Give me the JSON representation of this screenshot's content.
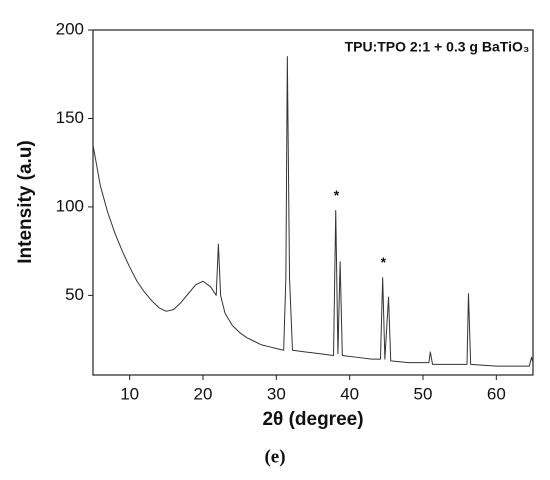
{
  "chart_data": {
    "type": "line",
    "x_label": "2θ (degree)",
    "y_label": "Intensity (a.u)",
    "caption": "(e)",
    "color": "#333333",
    "xlim": [
      5,
      65
    ],
    "ylim": [
      5,
      200
    ],
    "xticks": [
      10,
      20,
      30,
      40,
      50,
      60
    ],
    "yticks": [
      50,
      100,
      150,
      200
    ],
    "x": [
      5,
      6,
      7,
      8,
      9,
      10,
      11,
      12,
      13,
      14,
      15,
      16,
      17,
      18,
      19,
      20,
      21,
      21.8,
      22.1,
      22.4,
      23,
      24,
      25,
      26,
      27,
      28,
      29,
      30,
      31,
      31.3,
      31.5,
      31.8,
      32.2,
      34,
      36,
      37.8,
      38.1,
      38.4,
      38.7,
      39,
      41,
      43,
      44.2,
      44.5,
      44.8,
      45.3,
      45.6,
      48,
      50.8,
      51,
      51.3,
      54,
      56,
      56.2,
      56.5,
      60,
      64.5,
      64.8,
      65
    ],
    "values": [
      135,
      112,
      97,
      85,
      75,
      66,
      58,
      52,
      47,
      43,
      41,
      42,
      46,
      51,
      56,
      58,
      55,
      50,
      79,
      50,
      40,
      33,
      29,
      26,
      24,
      22,
      21,
      20,
      19,
      60,
      185,
      60,
      19,
      18,
      17,
      16,
      98,
      17,
      69,
      16,
      15,
      14,
      14,
      60,
      14,
      49,
      13,
      12,
      12,
      18,
      11,
      11,
      11,
      51,
      11,
      10,
      10,
      15,
      12
    ],
    "annotations": [
      {
        "text": "TPU:TPO 2:1 + 0.3 g BaTiO₃",
        "x": 64.5,
        "y": 190
      },
      {
        "text": "*",
        "x": 38.2,
        "y": 106
      },
      {
        "text": "*",
        "x": 44.6,
        "y": 68
      }
    ]
  }
}
